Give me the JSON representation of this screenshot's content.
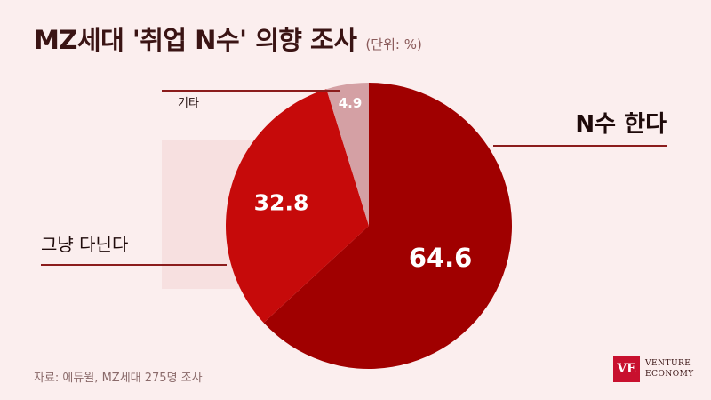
{
  "header": {
    "title": "MZ세대 '취업 N수' 의향 조사",
    "unit": "(단위: %)"
  },
  "source": "자료: 에듀윌, MZ세대 275명 조사",
  "logo": {
    "mark": "VE",
    "line1": "VENTURE",
    "line2": "ECONOMY"
  },
  "colors": {
    "n_times": "#a00000",
    "just_go": "#c60a0a",
    "other": "#d4a0a4",
    "leader": "#8b1c1c",
    "background": "#fbeeee"
  },
  "chart_data": {
    "type": "pie",
    "title": "MZ세대 '취업 N수' 의향 조사",
    "unit": "(단위: %)",
    "start_angle_deg": 0,
    "direction": "clockwise",
    "slices": [
      {
        "label": "N수 한다",
        "value": 64.6
      },
      {
        "label": "그냥 다닌다",
        "value": 32.8
      },
      {
        "label": "기타",
        "value": 4.9
      }
    ]
  }
}
